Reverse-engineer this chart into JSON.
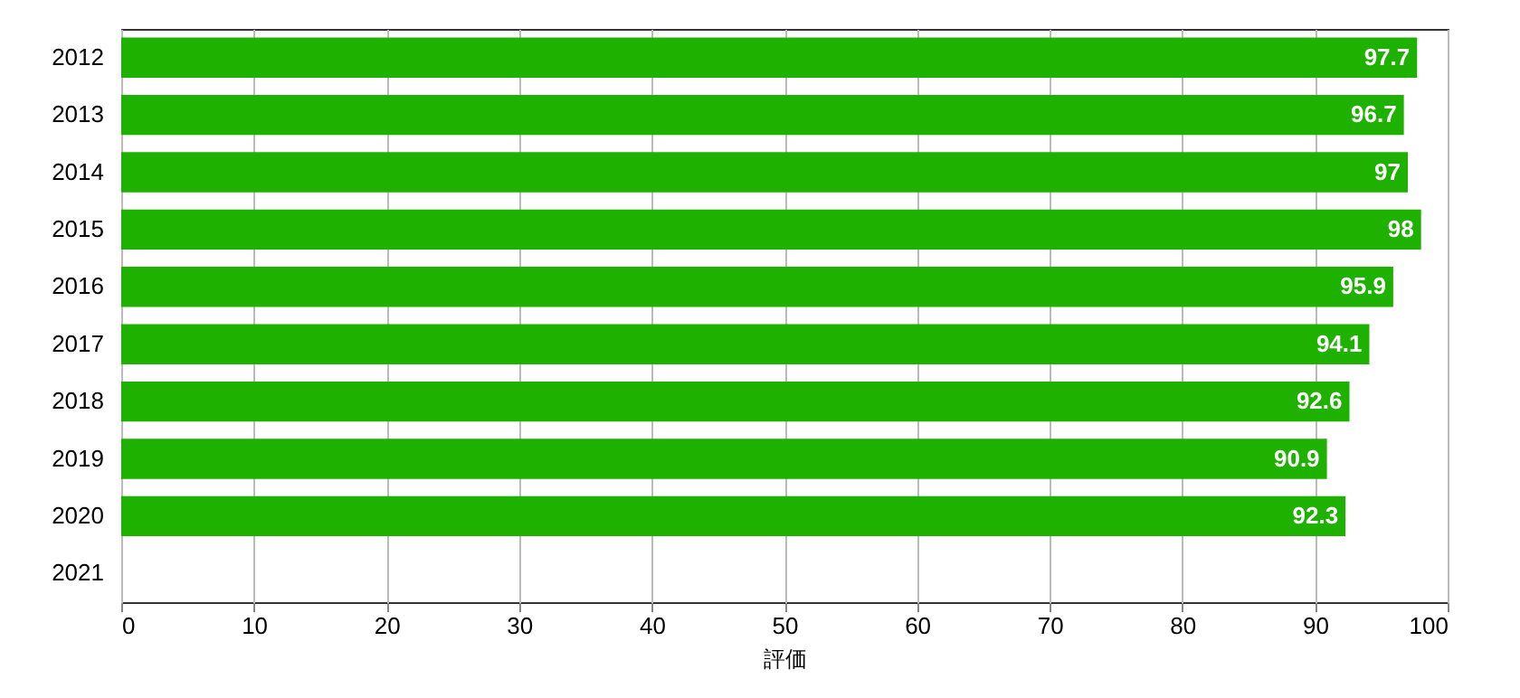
{
  "chart_data": {
    "type": "bar",
    "orientation": "horizontal",
    "xlabel": "評価",
    "categories": [
      "2012",
      "2013",
      "2014",
      "2015",
      "2016",
      "2017",
      "2018",
      "2019",
      "2020",
      "2021"
    ],
    "values": [
      97.7,
      96.7,
      97,
      98,
      95.9,
      94.1,
      92.6,
      90.9,
      92.3,
      null
    ],
    "color": "#1eb100",
    "xlim": [
      0,
      100
    ],
    "xticks": [
      0,
      10,
      20,
      30,
      40,
      50,
      60,
      70,
      80,
      90,
      100
    ],
    "grid": "x",
    "data_labels": true
  }
}
